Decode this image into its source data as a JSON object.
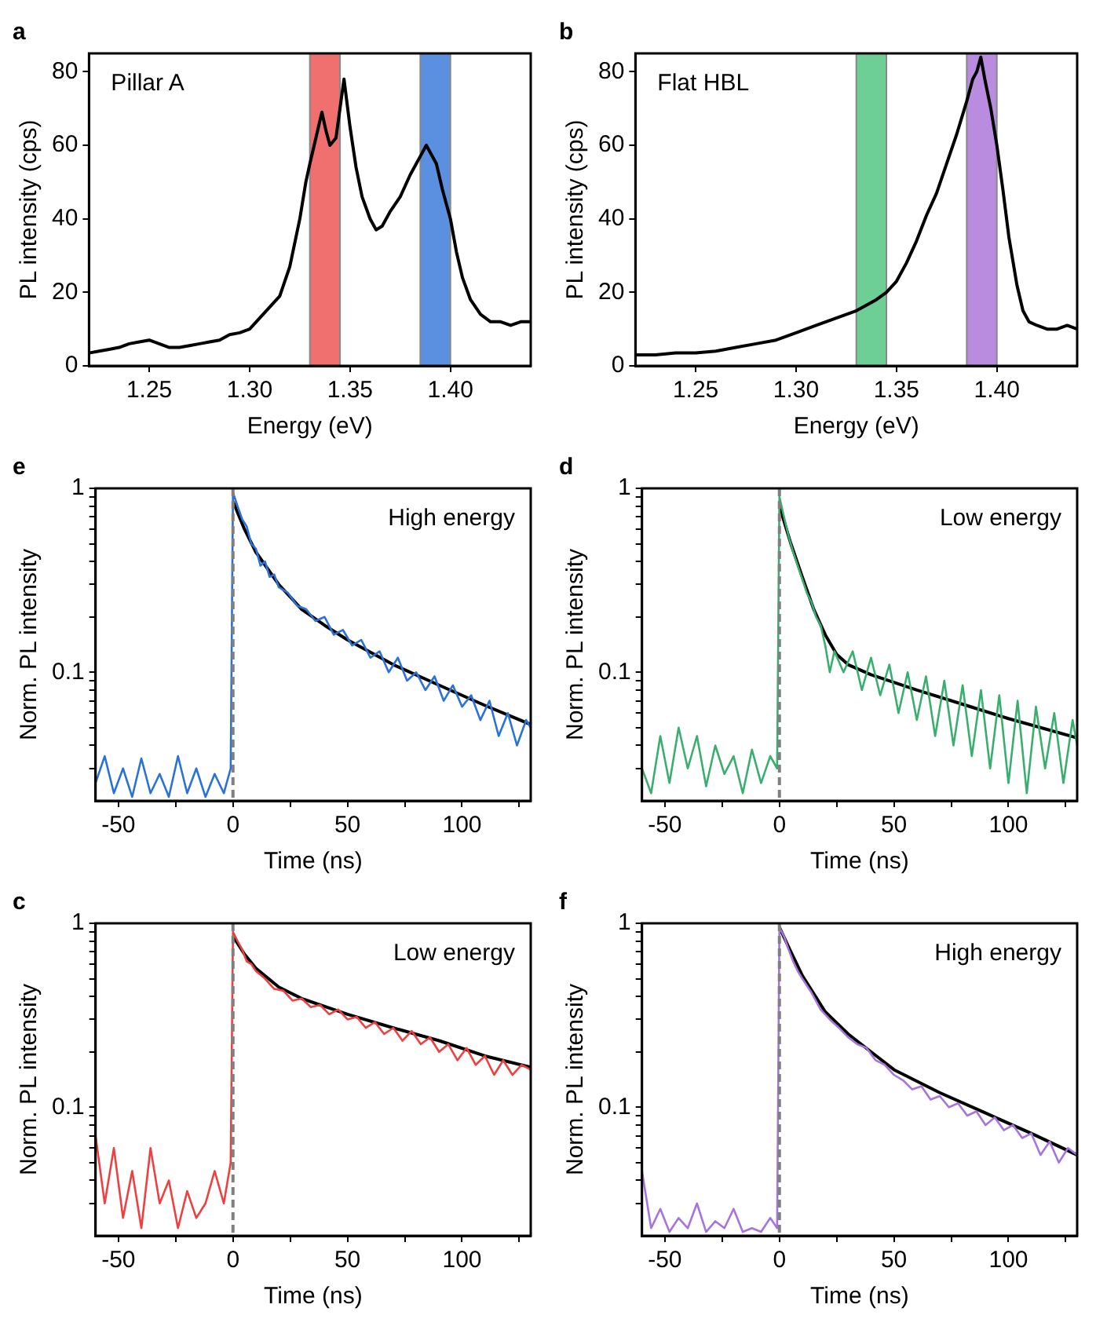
{
  "chart_data": [
    {
      "type": "line",
      "title": "a",
      "xlabel": "Energy (eV)",
      "ylabel": "PL intensity (cps)",
      "annotations": [
        "Pillar A"
      ],
      "xlim": [
        1.22,
        1.44
      ],
      "ylim": [
        0,
        85
      ],
      "xticks": [
        1.25,
        {
          "value": 1.3,
          "label": "1.30"
        },
        1.35,
        {
          "value": 1.4,
          "label": "1.40"
        }
      ],
      "yticks": [
        0,
        20,
        40,
        60,
        80
      ],
      "bands": [
        {
          "axis": "x",
          "from": 1.33,
          "to": 1.345,
          "color": "#f07070"
        },
        {
          "axis": "x",
          "from": 1.385,
          "to": 1.4,
          "color": "#5b8fe0"
        }
      ],
      "series": [
        {
          "color": "#000000",
          "x": [
            1.22,
            1.225,
            1.23,
            1.235,
            1.24,
            1.245,
            1.25,
            1.255,
            1.26,
            1.265,
            1.27,
            1.275,
            1.28,
            1.285,
            1.29,
            1.295,
            1.3,
            1.305,
            1.31,
            1.315,
            1.32,
            1.325,
            1.328,
            1.33,
            1.333,
            1.336,
            1.338,
            1.34,
            1.343,
            1.345,
            1.347,
            1.35,
            1.353,
            1.356,
            1.36,
            1.363,
            1.366,
            1.37,
            1.375,
            1.38,
            1.383,
            1.385,
            1.388,
            1.39,
            1.393,
            1.396,
            1.4,
            1.403,
            1.406,
            1.41,
            1.415,
            1.42,
            1.425,
            1.43,
            1.435,
            1.44
          ],
          "values": [
            3.5,
            4,
            4.5,
            5,
            6,
            6.5,
            7,
            6,
            5,
            5,
            5.5,
            6,
            6.5,
            7,
            8.5,
            9,
            10,
            13,
            16,
            19,
            27,
            40,
            50,
            55,
            62,
            69,
            64,
            60,
            62,
            70,
            78,
            65,
            54,
            46,
            40,
            37,
            38,
            42,
            46,
            52,
            55,
            57,
            60,
            58,
            55,
            48,
            40,
            31,
            24,
            18,
            14,
            12,
            12,
            11,
            12,
            12
          ]
        }
      ]
    },
    {
      "type": "line",
      "title": "b",
      "xlabel": "Energy (eV)",
      "ylabel": "PL intensity (cps)",
      "annotations": [
        "Flat HBL"
      ],
      "xlim": [
        1.22,
        1.44
      ],
      "ylim": [
        0,
        85
      ],
      "xticks": [
        1.25,
        {
          "value": 1.3,
          "label": "1.30"
        },
        1.35,
        {
          "value": 1.4,
          "label": "1.40"
        }
      ],
      "yticks": [
        0,
        20,
        40,
        60,
        80
      ],
      "bands": [
        {
          "axis": "x",
          "from": 1.33,
          "to": 1.345,
          "color": "#6dcf96"
        },
        {
          "axis": "x",
          "from": 1.385,
          "to": 1.4,
          "color": "#b98ce0"
        }
      ],
      "series": [
        {
          "color": "#000000",
          "x": [
            1.22,
            1.23,
            1.24,
            1.25,
            1.26,
            1.27,
            1.28,
            1.29,
            1.3,
            1.31,
            1.32,
            1.33,
            1.34,
            1.345,
            1.35,
            1.355,
            1.36,
            1.365,
            1.37,
            1.375,
            1.38,
            1.385,
            1.388,
            1.39,
            1.392,
            1.394,
            1.397,
            1.4,
            1.403,
            1.406,
            1.41,
            1.413,
            1.416,
            1.42,
            1.425,
            1.43,
            1.435,
            1.44
          ],
          "values": [
            3,
            3,
            3.5,
            3.5,
            4,
            5,
            6,
            7,
            9,
            11,
            13,
            15,
            18,
            20,
            23,
            28,
            34,
            41,
            47,
            55,
            63,
            72,
            78,
            80,
            84,
            78,
            70,
            60,
            48,
            35,
            22,
            15,
            12,
            11,
            10,
            10,
            11,
            10
          ]
        }
      ]
    },
    {
      "type": "line",
      "title": "e",
      "xlabel": "Time (ns)",
      "ylabel": "Norm. PL intensity",
      "annotations": [
        "High energy"
      ],
      "log": "y",
      "xlim": [
        -60,
        130
      ],
      "ylim": [
        0.02,
        1
      ],
      "xticks": [
        -50,
        {
          "value": -25,
          "label": null
        },
        0,
        {
          "value": 25,
          "label": null
        },
        50,
        {
          "value": 75,
          "label": null
        },
        100,
        {
          "value": 125,
          "label": null
        }
      ],
      "yticks": [
        {
          "value": 0.03,
          "label": null
        },
        {
          "value": 0.04,
          "label": null
        },
        {
          "value": 0.05,
          "label": null
        },
        {
          "value": 0.06,
          "label": null
        },
        {
          "value": 0.07,
          "label": null
        },
        {
          "value": 0.08,
          "label": null
        },
        {
          "value": 0.09,
          "label": null
        },
        0.1,
        {
          "value": 0.2,
          "label": null
        },
        {
          "value": 0.3,
          "label": null
        },
        {
          "value": 0.4,
          "label": null
        },
        {
          "value": 0.5,
          "label": null
        },
        {
          "value": 0.6,
          "label": null
        },
        {
          "value": 0.7,
          "label": null
        },
        {
          "value": 0.8,
          "label": null
        },
        {
          "value": 0.9,
          "label": null
        },
        1
      ],
      "ref_lines": [
        {
          "axis": "x",
          "value": 0,
          "color": "#808080",
          "line_style": "dashed"
        }
      ],
      "series": [
        {
          "color": "#2a72d8",
          "x": [
            -60,
            -56,
            -52,
            -48,
            -44,
            -40,
            -36,
            -32,
            -28,
            -24,
            -20,
            -16,
            -12,
            -8,
            -4,
            -1,
            0,
            2,
            4,
            6,
            8,
            10,
            12,
            14,
            16,
            18,
            20,
            24,
            28,
            32,
            36,
            40,
            44,
            48,
            52,
            56,
            60,
            64,
            68,
            72,
            76,
            80,
            84,
            88,
            92,
            96,
            100,
            104,
            108,
            112,
            116,
            120,
            124,
            128,
            130
          ],
          "values": [
            0.025,
            0.035,
            0.022,
            0.03,
            0.021,
            0.034,
            0.022,
            0.028,
            0.021,
            0.035,
            0.022,
            0.03,
            0.021,
            0.028,
            0.022,
            0.03,
            0.95,
            0.8,
            0.68,
            0.62,
            0.5,
            0.47,
            0.38,
            0.4,
            0.33,
            0.34,
            0.29,
            0.27,
            0.23,
            0.22,
            0.19,
            0.2,
            0.16,
            0.17,
            0.14,
            0.15,
            0.12,
            0.13,
            0.1,
            0.12,
            0.09,
            0.1,
            0.08,
            0.095,
            0.07,
            0.085,
            0.065,
            0.075,
            0.055,
            0.07,
            0.045,
            0.06,
            0.04,
            0.055,
            0.05
          ]
        },
        {
          "color": "#000000",
          "x": [
            0,
            5,
            10,
            20,
            30,
            40,
            50,
            70,
            90,
            110,
            130
          ],
          "values": [
            0.85,
            0.6,
            0.45,
            0.3,
            0.22,
            0.18,
            0.15,
            0.11,
            0.085,
            0.066,
            0.052
          ]
        }
      ]
    },
    {
      "type": "line",
      "title": "d",
      "xlabel": "Time (ns)",
      "ylabel": "Norm. PL intensity",
      "annotations": [
        "Low energy"
      ],
      "log": "y",
      "xlim": [
        -60,
        130
      ],
      "ylim": [
        0.02,
        1
      ],
      "xticks": [
        -50,
        {
          "value": -25,
          "label": null
        },
        0,
        {
          "value": 25,
          "label": null
        },
        50,
        {
          "value": 75,
          "label": null
        },
        100,
        {
          "value": 125,
          "label": null
        }
      ],
      "yticks": [
        {
          "value": 0.03,
          "label": null
        },
        {
          "value": 0.04,
          "label": null
        },
        {
          "value": 0.05,
          "label": null
        },
        {
          "value": 0.06,
          "label": null
        },
        {
          "value": 0.07,
          "label": null
        },
        {
          "value": 0.08,
          "label": null
        },
        {
          "value": 0.09,
          "label": null
        },
        0.1,
        {
          "value": 0.2,
          "label": null
        },
        {
          "value": 0.3,
          "label": null
        },
        {
          "value": 0.4,
          "label": null
        },
        {
          "value": 0.5,
          "label": null
        },
        {
          "value": 0.6,
          "label": null
        },
        {
          "value": 0.7,
          "label": null
        },
        {
          "value": 0.8,
          "label": null
        },
        {
          "value": 0.9,
          "label": null
        },
        1
      ],
      "ref_lines": [
        {
          "axis": "x",
          "value": 0,
          "color": "#808080",
          "line_style": "dashed"
        }
      ],
      "series": [
        {
          "color": "#3aae6e",
          "x": [
            -60,
            -56,
            -52,
            -48,
            -44,
            -40,
            -36,
            -32,
            -28,
            -24,
            -20,
            -16,
            -12,
            -8,
            -4,
            -1,
            0,
            2,
            4,
            6,
            8,
            10,
            12,
            14,
            16,
            18,
            20,
            22,
            24,
            28,
            32,
            36,
            40,
            44,
            48,
            52,
            56,
            60,
            64,
            68,
            72,
            76,
            80,
            84,
            88,
            92,
            96,
            100,
            104,
            108,
            112,
            116,
            120,
            124,
            128,
            130
          ],
          "values": [
            0.03,
            0.022,
            0.045,
            0.025,
            0.05,
            0.03,
            0.045,
            0.024,
            0.04,
            0.028,
            0.035,
            0.022,
            0.038,
            0.025,
            0.035,
            0.03,
            0.9,
            0.7,
            0.55,
            0.45,
            0.38,
            0.32,
            0.27,
            0.24,
            0.2,
            0.18,
            0.14,
            0.1,
            0.13,
            0.1,
            0.13,
            0.08,
            0.12,
            0.075,
            0.11,
            0.06,
            0.1,
            0.055,
            0.095,
            0.045,
            0.09,
            0.04,
            0.085,
            0.035,
            0.08,
            0.03,
            0.075,
            0.025,
            0.07,
            0.022,
            0.065,
            0.03,
            0.06,
            0.025,
            0.055,
            0.04
          ]
        },
        {
          "color": "#000000",
          "x": [
            0,
            5,
            10,
            15,
            20,
            25,
            30,
            40,
            60,
            80,
            100,
            130
          ],
          "values": [
            0.8,
            0.5,
            0.33,
            0.22,
            0.16,
            0.125,
            0.11,
            0.097,
            0.08,
            0.067,
            0.056,
            0.044
          ]
        }
      ]
    },
    {
      "type": "line",
      "title": "c",
      "xlabel": "Time (ns)",
      "ylabel": "Norm. PL intensity",
      "annotations": [
        "Low energy"
      ],
      "log": "y",
      "xlim": [
        -60,
        130
      ],
      "ylim": [
        0.02,
        1
      ],
      "xticks": [
        -50,
        {
          "value": -25,
          "label": null
        },
        0,
        {
          "value": 25,
          "label": null
        },
        50,
        {
          "value": 75,
          "label": null
        },
        100,
        {
          "value": 125,
          "label": null
        }
      ],
      "yticks": [
        {
          "value": 0.03,
          "label": null
        },
        {
          "value": 0.04,
          "label": null
        },
        {
          "value": 0.05,
          "label": null
        },
        {
          "value": 0.06,
          "label": null
        },
        {
          "value": 0.07,
          "label": null
        },
        {
          "value": 0.08,
          "label": null
        },
        {
          "value": 0.09,
          "label": null
        },
        0.1,
        {
          "value": 0.2,
          "label": null
        },
        {
          "value": 0.3,
          "label": null
        },
        {
          "value": 0.4,
          "label": null
        },
        {
          "value": 0.5,
          "label": null
        },
        {
          "value": 0.6,
          "label": null
        },
        {
          "value": 0.7,
          "label": null
        },
        {
          "value": 0.8,
          "label": null
        },
        {
          "value": 0.9,
          "label": null
        },
        1
      ],
      "ref_lines": [
        {
          "axis": "x",
          "value": 0,
          "color": "#808080",
          "line_style": "dashed"
        }
      ],
      "series": [
        {
          "color": "#ee4040",
          "x": [
            -60,
            -56,
            -52,
            -48,
            -44,
            -40,
            -36,
            -32,
            -28,
            -24,
            -20,
            -16,
            -12,
            -8,
            -4,
            -1,
            0,
            2,
            4,
            6,
            8,
            10,
            14,
            18,
            22,
            26,
            30,
            34,
            38,
            42,
            46,
            50,
            54,
            58,
            62,
            66,
            70,
            74,
            78,
            82,
            86,
            90,
            94,
            98,
            102,
            106,
            110,
            114,
            118,
            122,
            126,
            130
          ],
          "values": [
            0.07,
            0.03,
            0.06,
            0.025,
            0.045,
            0.022,
            0.06,
            0.03,
            0.04,
            0.022,
            0.035,
            0.025,
            0.03,
            0.045,
            0.03,
            0.05,
            0.9,
            0.8,
            0.72,
            0.62,
            0.6,
            0.55,
            0.5,
            0.44,
            0.43,
            0.38,
            0.39,
            0.35,
            0.36,
            0.32,
            0.34,
            0.3,
            0.31,
            0.27,
            0.29,
            0.25,
            0.27,
            0.23,
            0.26,
            0.22,
            0.24,
            0.2,
            0.22,
            0.18,
            0.21,
            0.17,
            0.19,
            0.15,
            0.18,
            0.15,
            0.17,
            0.16
          ]
        },
        {
          "color": "#000000",
          "x": [
            0,
            5,
            10,
            20,
            30,
            50,
            70,
            90,
            110,
            130
          ],
          "values": [
            0.85,
            0.68,
            0.57,
            0.45,
            0.39,
            0.32,
            0.27,
            0.23,
            0.19,
            0.165
          ]
        }
      ]
    },
    {
      "type": "line",
      "title": "f",
      "xlabel": "Time (ns)",
      "ylabel": "Norm. PL intensity",
      "annotations": [
        "High energy"
      ],
      "log": "y",
      "xlim": [
        -60,
        130
      ],
      "ylim": [
        0.02,
        1
      ],
      "xticks": [
        -50,
        {
          "value": -25,
          "label": null
        },
        0,
        {
          "value": 25,
          "label": null
        },
        50,
        {
          "value": 75,
          "label": null
        },
        100,
        {
          "value": 125,
          "label": null
        }
      ],
      "yticks": [
        {
          "value": 0.03,
          "label": null
        },
        {
          "value": 0.04,
          "label": null
        },
        {
          "value": 0.05,
          "label": null
        },
        {
          "value": 0.06,
          "label": null
        },
        {
          "value": 0.07,
          "label": null
        },
        {
          "value": 0.08,
          "label": null
        },
        {
          "value": 0.09,
          "label": null
        },
        0.1,
        {
          "value": 0.2,
          "label": null
        },
        {
          "value": 0.3,
          "label": null
        },
        {
          "value": 0.4,
          "label": null
        },
        {
          "value": 0.5,
          "label": null
        },
        {
          "value": 0.6,
          "label": null
        },
        {
          "value": 0.7,
          "label": null
        },
        {
          "value": 0.8,
          "label": null
        },
        {
          "value": 0.9,
          "label": null
        },
        1
      ],
      "ref_lines": [
        {
          "axis": "x",
          "value": 0,
          "color": "#808080",
          "line_style": "dashed"
        }
      ],
      "series": [
        {
          "color": "#a674dc",
          "x": [
            -60,
            -56,
            -52,
            -48,
            -44,
            -40,
            -36,
            -32,
            -28,
            -24,
            -20,
            -16,
            -12,
            -8,
            -4,
            -1,
            0,
            2,
            4,
            6,
            8,
            10,
            14,
            18,
            22,
            26,
            30,
            34,
            38,
            42,
            46,
            50,
            54,
            58,
            62,
            66,
            70,
            74,
            78,
            82,
            86,
            90,
            94,
            98,
            102,
            106,
            110,
            114,
            118,
            122,
            126,
            130
          ],
          "values": [
            0.045,
            0.022,
            0.028,
            0.021,
            0.025,
            0.022,
            0.03,
            0.021,
            0.024,
            0.022,
            0.028,
            0.021,
            0.022,
            0.021,
            0.025,
            0.022,
            0.95,
            0.85,
            0.72,
            0.62,
            0.55,
            0.5,
            0.42,
            0.34,
            0.3,
            0.27,
            0.24,
            0.22,
            0.21,
            0.18,
            0.17,
            0.15,
            0.14,
            0.125,
            0.13,
            0.11,
            0.115,
            0.1,
            0.105,
            0.09,
            0.095,
            0.08,
            0.088,
            0.075,
            0.08,
            0.068,
            0.072,
            0.055,
            0.065,
            0.05,
            0.06,
            0.055
          ]
        },
        {
          "color": "#000000",
          "x": [
            0,
            5,
            10,
            20,
            30,
            40,
            50,
            70,
            90,
            110,
            130
          ],
          "values": [
            0.95,
            0.7,
            0.52,
            0.33,
            0.25,
            0.2,
            0.16,
            0.12,
            0.093,
            0.072,
            0.055
          ]
        }
      ]
    }
  ]
}
